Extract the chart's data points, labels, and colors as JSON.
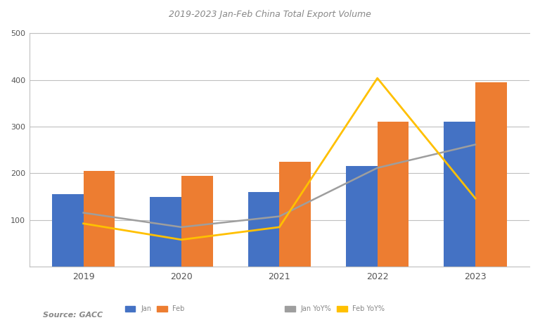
{
  "title": "2019-2023 Jan-Feb China Total Export Volume",
  "x_labels": [
    "2019",
    "2020",
    "2021",
    "2022",
    "2023"
  ],
  "bar_jan": [
    155000,
    150000,
    160000,
    215000,
    310000
  ],
  "bar_feb": [
    205000,
    195000,
    225000,
    310000,
    395000
  ],
  "line_gray": [
    0.3,
    0.22,
    0.28,
    0.55,
    0.68
  ],
  "line_yellow": [
    0.24,
    0.15,
    0.22,
    1.05,
    0.38
  ],
  "bar_jan_color": "#4472C4",
  "bar_feb_color": "#ED7D31",
  "line_gray_color": "#9E9E9E",
  "line_yellow_color": "#FFC000",
  "fig_bg_color": "#ffffff",
  "plot_bg_color": "#ffffff",
  "grid_color": "#c0c0c0",
  "text_color": "#555555",
  "title_color": "#888888",
  "source_text": "Source: GACC",
  "bar_ylim": [
    0,
    500000
  ],
  "bar_yticks": [
    0,
    100000,
    200000,
    300000,
    400000,
    500000
  ],
  "line_ylim": [
    0.0,
    1.3
  ],
  "legend_labels_bar": [
    "Jan",
    "Feb"
  ],
  "legend_labels_line": [
    "Jan YoY%",
    "Feb YoY%"
  ],
  "figsize": [
    7.68,
    4.72
  ],
  "dpi": 100
}
